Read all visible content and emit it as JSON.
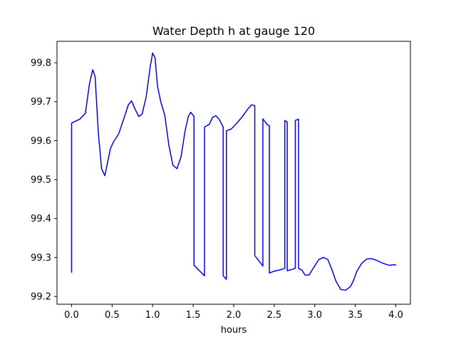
{
  "chart_data": {
    "type": "line",
    "title": "Water Depth h at gauge 120",
    "xlabel": "hours",
    "ylabel": "",
    "xlim": [
      -0.18,
      4.18
    ],
    "ylim": [
      99.18,
      99.855
    ],
    "x_ticks": [
      0.0,
      0.5,
      1.0,
      1.5,
      2.0,
      2.5,
      3.0,
      3.5,
      4.0
    ],
    "x_tick_labels": [
      "0.0",
      "0.5",
      "1.0",
      "1.5",
      "2.0",
      "2.5",
      "3.0",
      "3.5",
      "4.0"
    ],
    "y_ticks": [
      99.2,
      99.3,
      99.4,
      99.5,
      99.6,
      99.7,
      99.8
    ],
    "y_tick_labels": [
      "99.2",
      "99.3",
      "99.4",
      "99.5",
      "99.6",
      "99.7",
      "99.8"
    ],
    "grid": false,
    "series": [
      {
        "color": "#0000ff",
        "x": [
          0.0,
          0.0,
          0.04,
          0.1,
          0.17,
          0.22,
          0.26,
          0.29,
          0.33,
          0.37,
          0.41,
          0.44,
          0.48,
          0.52,
          0.58,
          0.65,
          0.7,
          0.74,
          0.78,
          0.83,
          0.87,
          0.92,
          0.97,
          1.0,
          1.03,
          1.06,
          1.1,
          1.15,
          1.2,
          1.25,
          1.3,
          1.35,
          1.4,
          1.44,
          1.47,
          1.51,
          1.51,
          1.64,
          1.64,
          1.7,
          1.74,
          1.78,
          1.82,
          1.87,
          1.87,
          1.91,
          1.91,
          1.97,
          2.03,
          2.1,
          2.17,
          2.22,
          2.26,
          2.26,
          2.36,
          2.36,
          2.39,
          2.41,
          2.44,
          2.44,
          2.5,
          2.57,
          2.63,
          2.63,
          2.66,
          2.66,
          2.73,
          2.76,
          2.76,
          2.8,
          2.8,
          2.84,
          2.88,
          2.93,
          2.98,
          3.05,
          3.11,
          3.16,
          3.21,
          3.26,
          3.32,
          3.38,
          3.44,
          3.48,
          3.52,
          3.58,
          3.64,
          3.7,
          3.76,
          3.82,
          3.87,
          3.92,
          3.96,
          4.0
        ],
        "y": [
          99.262,
          99.645,
          99.649,
          99.655,
          99.67,
          99.745,
          99.782,
          99.765,
          99.62,
          99.528,
          99.51,
          99.54,
          99.58,
          99.598,
          99.617,
          99.66,
          99.692,
          99.702,
          99.682,
          99.662,
          99.668,
          99.712,
          99.79,
          99.825,
          99.812,
          99.74,
          99.7,
          99.665,
          99.588,
          99.537,
          99.528,
          99.558,
          99.625,
          99.662,
          99.673,
          99.662,
          99.28,
          99.253,
          99.635,
          99.642,
          99.66,
          99.664,
          99.655,
          99.635,
          99.253,
          99.244,
          99.625,
          99.63,
          99.643,
          99.66,
          99.68,
          99.692,
          99.69,
          99.305,
          99.278,
          99.656,
          99.648,
          99.642,
          99.638,
          99.26,
          99.265,
          99.268,
          99.272,
          99.652,
          99.648,
          99.266,
          99.27,
          99.273,
          99.652,
          99.655,
          99.272,
          99.268,
          99.255,
          99.255,
          99.272,
          99.295,
          99.3,
          99.295,
          99.27,
          99.24,
          99.218,
          99.216,
          99.225,
          99.242,
          99.265,
          99.285,
          99.296,
          99.297,
          99.293,
          99.287,
          99.283,
          99.28,
          99.281,
          99.281
        ]
      }
    ]
  }
}
